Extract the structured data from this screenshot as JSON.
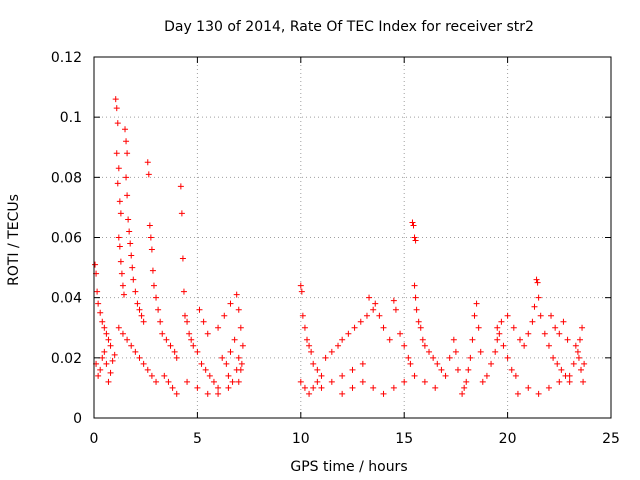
{
  "chart_data": {
    "type": "scatter",
    "title": "Day 130 of 2014, Rate Of TEC Index for receiver str2",
    "xlabel": "GPS time / hours",
    "ylabel": "ROTI / TECUs",
    "xlim": [
      0,
      25
    ],
    "ylim": [
      0,
      0.12
    ],
    "grid": true,
    "marker": "+",
    "color": "#ff0000",
    "x_ticks": [
      0,
      5,
      10,
      15,
      20,
      25
    ],
    "x_tick_labels": [
      "0",
      "5",
      "10",
      "15",
      "20",
      "25"
    ],
    "y_ticks": [
      0,
      0.02,
      0.04,
      0.06,
      0.08,
      0.1,
      0.12
    ],
    "y_tick_labels": [
      "0",
      "0.02",
      "0.04",
      "0.06",
      "0.08",
      "0.1",
      "0.12"
    ],
    "series": [
      {
        "name": "ROTI",
        "points": [
          [
            0.05,
            0.051
          ],
          [
            0.1,
            0.048
          ],
          [
            0.15,
            0.042
          ],
          [
            0.2,
            0.038
          ],
          [
            0.3,
            0.035
          ],
          [
            0.4,
            0.032
          ],
          [
            0.5,
            0.03
          ],
          [
            0.6,
            0.028
          ],
          [
            0.7,
            0.026
          ],
          [
            0.8,
            0.024
          ],
          [
            0.1,
            0.018
          ],
          [
            0.2,
            0.014
          ],
          [
            0.3,
            0.016
          ],
          [
            0.4,
            0.02
          ],
          [
            0.5,
            0.022
          ],
          [
            0.6,
            0.018
          ],
          [
            0.7,
            0.012
          ],
          [
            0.8,
            0.015
          ],
          [
            0.9,
            0.019
          ],
          [
            1.0,
            0.021
          ],
          [
            1.05,
            0.106
          ],
          [
            1.1,
            0.103
          ],
          [
            1.15,
            0.098
          ],
          [
            1.1,
            0.088
          ],
          [
            1.2,
            0.083
          ],
          [
            1.15,
            0.078
          ],
          [
            1.25,
            0.072
          ],
          [
            1.3,
            0.068
          ],
          [
            1.2,
            0.06
          ],
          [
            1.25,
            0.057
          ],
          [
            1.3,
            0.052
          ],
          [
            1.35,
            0.048
          ],
          [
            1.4,
            0.044
          ],
          [
            1.45,
            0.041
          ],
          [
            1.5,
            0.096
          ],
          [
            1.55,
            0.092
          ],
          [
            1.6,
            0.088
          ],
          [
            1.55,
            0.08
          ],
          [
            1.6,
            0.074
          ],
          [
            1.65,
            0.066
          ],
          [
            1.7,
            0.062
          ],
          [
            1.75,
            0.058
          ],
          [
            1.8,
            0.054
          ],
          [
            1.85,
            0.05
          ],
          [
            1.9,
            0.046
          ],
          [
            2.0,
            0.042
          ],
          [
            2.1,
            0.038
          ],
          [
            2.2,
            0.036
          ],
          [
            2.3,
            0.034
          ],
          [
            2.4,
            0.032
          ],
          [
            2.6,
            0.085
          ],
          [
            2.65,
            0.081
          ],
          [
            2.7,
            0.064
          ],
          [
            2.75,
            0.06
          ],
          [
            2.8,
            0.056
          ],
          [
            2.85,
            0.049
          ],
          [
            2.9,
            0.044
          ],
          [
            3.0,
            0.04
          ],
          [
            3.1,
            0.036
          ],
          [
            3.2,
            0.032
          ],
          [
            1.2,
            0.03
          ],
          [
            1.4,
            0.028
          ],
          [
            1.6,
            0.026
          ],
          [
            1.8,
            0.024
          ],
          [
            2.0,
            0.022
          ],
          [
            2.2,
            0.02
          ],
          [
            2.4,
            0.018
          ],
          [
            2.6,
            0.016
          ],
          [
            2.8,
            0.014
          ],
          [
            3.0,
            0.012
          ],
          [
            3.3,
            0.028
          ],
          [
            3.5,
            0.026
          ],
          [
            3.7,
            0.024
          ],
          [
            3.9,
            0.022
          ],
          [
            4.0,
            0.02
          ],
          [
            4.2,
            0.077
          ],
          [
            4.25,
            0.068
          ],
          [
            4.3,
            0.053
          ],
          [
            4.35,
            0.042
          ],
          [
            4.4,
            0.034
          ],
          [
            4.5,
            0.032
          ],
          [
            4.6,
            0.028
          ],
          [
            4.7,
            0.026
          ],
          [
            4.8,
            0.024
          ],
          [
            5.0,
            0.022
          ],
          [
            5.2,
            0.018
          ],
          [
            5.4,
            0.016
          ],
          [
            5.6,
            0.014
          ],
          [
            5.8,
            0.012
          ],
          [
            6.0,
            0.01
          ],
          [
            3.4,
            0.014
          ],
          [
            3.6,
            0.012
          ],
          [
            3.8,
            0.01
          ],
          [
            4.0,
            0.008
          ],
          [
            4.5,
            0.012
          ],
          [
            5.0,
            0.01
          ],
          [
            5.5,
            0.008
          ],
          [
            6.0,
            0.008
          ],
          [
            6.5,
            0.01
          ],
          [
            7.0,
            0.012
          ],
          [
            5.1,
            0.036
          ],
          [
            5.3,
            0.032
          ],
          [
            5.5,
            0.028
          ],
          [
            6.0,
            0.03
          ],
          [
            6.3,
            0.034
          ],
          [
            6.6,
            0.038
          ],
          [
            6.9,
            0.041
          ],
          [
            7.0,
            0.036
          ],
          [
            7.1,
            0.03
          ],
          [
            7.2,
            0.024
          ],
          [
            6.2,
            0.02
          ],
          [
            6.4,
            0.018
          ],
          [
            6.6,
            0.022
          ],
          [
            6.8,
            0.026
          ],
          [
            7.0,
            0.02
          ],
          [
            7.1,
            0.016
          ],
          [
            6.5,
            0.014
          ],
          [
            6.7,
            0.012
          ],
          [
            6.9,
            0.016
          ],
          [
            7.15,
            0.018
          ],
          [
            10.0,
            0.044
          ],
          [
            10.05,
            0.042
          ],
          [
            10.1,
            0.034
          ],
          [
            10.2,
            0.03
          ],
          [
            10.3,
            0.026
          ],
          [
            10.4,
            0.024
          ],
          [
            10.5,
            0.022
          ],
          [
            10.6,
            0.018
          ],
          [
            10.8,
            0.016
          ],
          [
            11.0,
            0.014
          ],
          [
            10.0,
            0.012
          ],
          [
            10.2,
            0.01
          ],
          [
            10.4,
            0.008
          ],
          [
            10.6,
            0.01
          ],
          [
            10.8,
            0.012
          ],
          [
            11.0,
            0.01
          ],
          [
            11.5,
            0.012
          ],
          [
            12.0,
            0.014
          ],
          [
            12.5,
            0.016
          ],
          [
            13.0,
            0.018
          ],
          [
            11.2,
            0.02
          ],
          [
            11.5,
            0.022
          ],
          [
            11.8,
            0.024
          ],
          [
            12.0,
            0.026
          ],
          [
            12.3,
            0.028
          ],
          [
            12.6,
            0.03
          ],
          [
            12.9,
            0.032
          ],
          [
            13.2,
            0.034
          ],
          [
            13.5,
            0.036
          ],
          [
            13.8,
            0.034
          ],
          [
            13.3,
            0.04
          ],
          [
            13.6,
            0.038
          ],
          [
            14.0,
            0.03
          ],
          [
            14.3,
            0.026
          ],
          [
            14.5,
            0.039
          ],
          [
            14.6,
            0.036
          ],
          [
            14.8,
            0.028
          ],
          [
            15.0,
            0.024
          ],
          [
            15.2,
            0.02
          ],
          [
            15.3,
            0.018
          ],
          [
            12.0,
            0.008
          ],
          [
            12.5,
            0.01
          ],
          [
            13.0,
            0.012
          ],
          [
            13.5,
            0.01
          ],
          [
            14.0,
            0.008
          ],
          [
            14.5,
            0.01
          ],
          [
            15.0,
            0.012
          ],
          [
            15.5,
            0.014
          ],
          [
            16.0,
            0.012
          ],
          [
            16.5,
            0.01
          ],
          [
            15.4,
            0.065
          ],
          [
            15.45,
            0.064
          ],
          [
            15.5,
            0.06
          ],
          [
            15.55,
            0.059
          ],
          [
            15.5,
            0.044
          ],
          [
            15.55,
            0.04
          ],
          [
            15.6,
            0.036
          ],
          [
            15.7,
            0.032
          ],
          [
            15.8,
            0.03
          ],
          [
            15.9,
            0.026
          ],
          [
            16.0,
            0.024
          ],
          [
            16.2,
            0.022
          ],
          [
            16.4,
            0.02
          ],
          [
            16.6,
            0.018
          ],
          [
            16.8,
            0.016
          ],
          [
            17.0,
            0.014
          ],
          [
            17.2,
            0.02
          ],
          [
            17.4,
            0.026
          ],
          [
            17.5,
            0.022
          ],
          [
            17.6,
            0.016
          ],
          [
            17.8,
            0.008
          ],
          [
            17.9,
            0.01
          ],
          [
            18.0,
            0.012
          ],
          [
            18.1,
            0.016
          ],
          [
            18.2,
            0.02
          ],
          [
            18.3,
            0.026
          ],
          [
            18.4,
            0.034
          ],
          [
            18.5,
            0.038
          ],
          [
            18.6,
            0.03
          ],
          [
            18.7,
            0.022
          ],
          [
            18.8,
            0.012
          ],
          [
            19.0,
            0.014
          ],
          [
            19.2,
            0.018
          ],
          [
            19.4,
            0.022
          ],
          [
            19.5,
            0.026
          ],
          [
            19.6,
            0.028
          ],
          [
            19.8,
            0.024
          ],
          [
            20.0,
            0.02
          ],
          [
            20.2,
            0.016
          ],
          [
            20.4,
            0.014
          ],
          [
            19.5,
            0.03
          ],
          [
            19.7,
            0.032
          ],
          [
            20.0,
            0.034
          ],
          [
            20.3,
            0.03
          ],
          [
            20.6,
            0.026
          ],
          [
            20.8,
            0.024
          ],
          [
            21.0,
            0.028
          ],
          [
            21.2,
            0.032
          ],
          [
            21.3,
            0.037
          ],
          [
            21.4,
            0.046
          ],
          [
            21.45,
            0.045
          ],
          [
            21.5,
            0.04
          ],
          [
            21.6,
            0.034
          ],
          [
            21.8,
            0.028
          ],
          [
            22.0,
            0.024
          ],
          [
            22.2,
            0.02
          ],
          [
            22.4,
            0.018
          ],
          [
            22.6,
            0.016
          ],
          [
            22.8,
            0.014
          ],
          [
            23.0,
            0.012
          ],
          [
            20.5,
            0.008
          ],
          [
            21.0,
            0.01
          ],
          [
            21.5,
            0.008
          ],
          [
            22.0,
            0.01
          ],
          [
            22.5,
            0.012
          ],
          [
            23.0,
            0.014
          ],
          [
            23.2,
            0.018
          ],
          [
            23.4,
            0.022
          ],
          [
            23.5,
            0.026
          ],
          [
            23.6,
            0.03
          ],
          [
            23.3,
            0.024
          ],
          [
            23.45,
            0.02
          ],
          [
            23.55,
            0.016
          ],
          [
            23.65,
            0.012
          ],
          [
            23.7,
            0.018
          ],
          [
            22.1,
            0.034
          ],
          [
            22.3,
            0.03
          ],
          [
            22.5,
            0.028
          ],
          [
            22.7,
            0.032
          ],
          [
            22.9,
            0.026
          ]
        ]
      }
    ]
  }
}
